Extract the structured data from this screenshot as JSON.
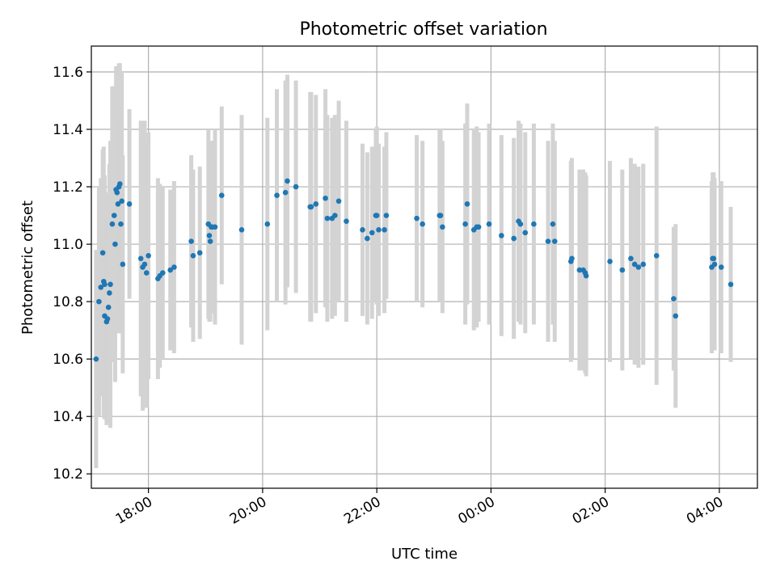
{
  "chart_data": {
    "type": "scatter",
    "title": "Photometric offset variation",
    "xlabel": "UTC time",
    "ylabel": "Photometric offset",
    "x_unit": "UTC time of night (17:00 to 04:30)",
    "xlim": [
      "17:00",
      "04:40"
    ],
    "ylim": [
      10.15,
      11.69
    ],
    "x_ticks": [
      "18:00",
      "20:00",
      "22:00",
      "00:00",
      "02:00",
      "04:00"
    ],
    "y_ticks": [
      10.2,
      10.4,
      10.6,
      10.8,
      11.0,
      11.2,
      11.4,
      11.6
    ],
    "grid": true,
    "colors": {
      "point": "#1f77b4",
      "errorbar": "#d3d3d3"
    },
    "series": [
      {
        "x": [
          "17:05",
          "17:08",
          "17:10",
          "17:12",
          "17:13",
          "17:14",
          "17:14",
          "17:16",
          "17:17",
          "17:18",
          "17:19",
          "17:20",
          "17:22",
          "17:24",
          "17:25",
          "17:26",
          "17:27",
          "17:28",
          "17:29",
          "17:30",
          "17:31",
          "17:32",
          "17:33",
          "17:40",
          "17:52",
          "17:54",
          "17:56",
          "17:58",
          "18:00",
          "18:10",
          "18:12",
          "18:15",
          "18:23",
          "18:27",
          "18:45",
          "18:47",
          "18:54",
          "19:03",
          "19:04",
          "19:05",
          "19:06",
          "19:07",
          "19:10",
          "19:17",
          "19:38",
          "20:05",
          "20:15",
          "20:24",
          "20:26",
          "20:35",
          "20:50",
          "20:51",
          "20:56",
          "21:06",
          "21:08",
          "21:13",
          "21:16",
          "21:20",
          "21:28",
          "21:45",
          "21:50",
          "21:55",
          "21:59",
          "22:00",
          "22:02",
          "22:08",
          "22:10",
          "22:42",
          "22:48",
          "23:06",
          "23:07",
          "23:09",
          "23:33",
          "23:35",
          "23:42",
          "23:45",
          "23:47",
          "23:58",
          "24:11",
          "24:24",
          "24:29",
          "24:31",
          "24:36",
          "24:45",
          "25:00",
          "25:05",
          "25:07",
          "25:24",
          "25:25",
          "25:33",
          "25:37",
          "25:39",
          "25:40",
          "26:05",
          "26:18",
          "26:27",
          "26:31",
          "26:35",
          "26:40",
          "26:54",
          "27:12",
          "27:14",
          "27:52",
          "27:53",
          "27:54",
          "27:55",
          "28:02",
          "28:12"
        ],
        "y": [
          10.6,
          10.8,
          10.85,
          10.97,
          10.87,
          10.86,
          10.75,
          10.73,
          10.74,
          10.78,
          10.83,
          10.86,
          11.07,
          11.1,
          11.0,
          11.19,
          11.18,
          11.14,
          11.2,
          11.21,
          11.07,
          11.15,
          10.93,
          11.14,
          10.95,
          10.92,
          10.93,
          10.9,
          10.96,
          10.88,
          10.89,
          10.9,
          10.91,
          10.92,
          11.01,
          10.96,
          10.97,
          11.07,
          11.03,
          11.01,
          11.06,
          11.06,
          11.06,
          11.17,
          11.05,
          11.07,
          11.17,
          11.18,
          11.22,
          11.2,
          11.13,
          11.13,
          11.14,
          11.16,
          11.09,
          11.09,
          11.1,
          11.15,
          11.08,
          11.05,
          11.02,
          11.04,
          11.1,
          11.1,
          11.05,
          11.05,
          11.1,
          11.09,
          11.07,
          11.1,
          11.1,
          11.06,
          11.07,
          11.14,
          11.05,
          11.06,
          11.06,
          11.07,
          11.03,
          11.02,
          11.08,
          11.07,
          11.04,
          11.07,
          11.01,
          11.07,
          11.01,
          10.94,
          10.95,
          10.91,
          10.91,
          10.9,
          10.89,
          10.94,
          10.91,
          10.95,
          10.93,
          10.92,
          10.93,
          10.96,
          10.81,
          10.75,
          10.92,
          10.95,
          10.95,
          10.93,
          10.92,
          10.86
        ],
        "error": [
          0.38,
          0.4,
          0.38,
          0.36,
          0.47,
          0.38,
          0.36,
          0.36,
          0.36,
          0.4,
          0.45,
          0.5,
          0.48,
          0.45,
          0.48,
          0.43,
          0.43,
          0.45,
          0.43,
          0.42,
          0.38,
          0.45,
          0.38,
          0.33,
          0.48,
          0.5,
          0.5,
          0.47,
          0.43,
          0.35,
          0.32,
          0.3,
          0.28,
          0.3,
          0.3,
          0.3,
          0.3,
          0.33,
          0.3,
          0.28,
          0.3,
          0.3,
          0.34,
          0.31,
          0.4,
          0.37,
          0.37,
          0.39,
          0.37,
          0.37,
          0.4,
          0.4,
          0.38,
          0.38,
          0.36,
          0.35,
          0.35,
          0.35,
          0.35,
          0.3,
          0.3,
          0.3,
          0.3,
          0.31,
          0.3,
          0.29,
          0.29,
          0.29,
          0.29,
          0.3,
          0.3,
          0.3,
          0.35,
          0.35,
          0.35,
          0.35,
          0.33,
          0.35,
          0.35,
          0.35,
          0.35,
          0.35,
          0.35,
          0.35,
          0.35,
          0.35,
          0.35,
          0.35,
          0.35,
          0.35,
          0.35,
          0.35,
          0.35,
          0.35,
          0.35,
          0.35,
          0.35,
          0.35,
          0.35,
          0.45,
          0.25,
          0.32,
          0.3,
          0.3,
          0.3,
          0.3,
          0.3,
          0.27
        ]
      }
    ]
  }
}
